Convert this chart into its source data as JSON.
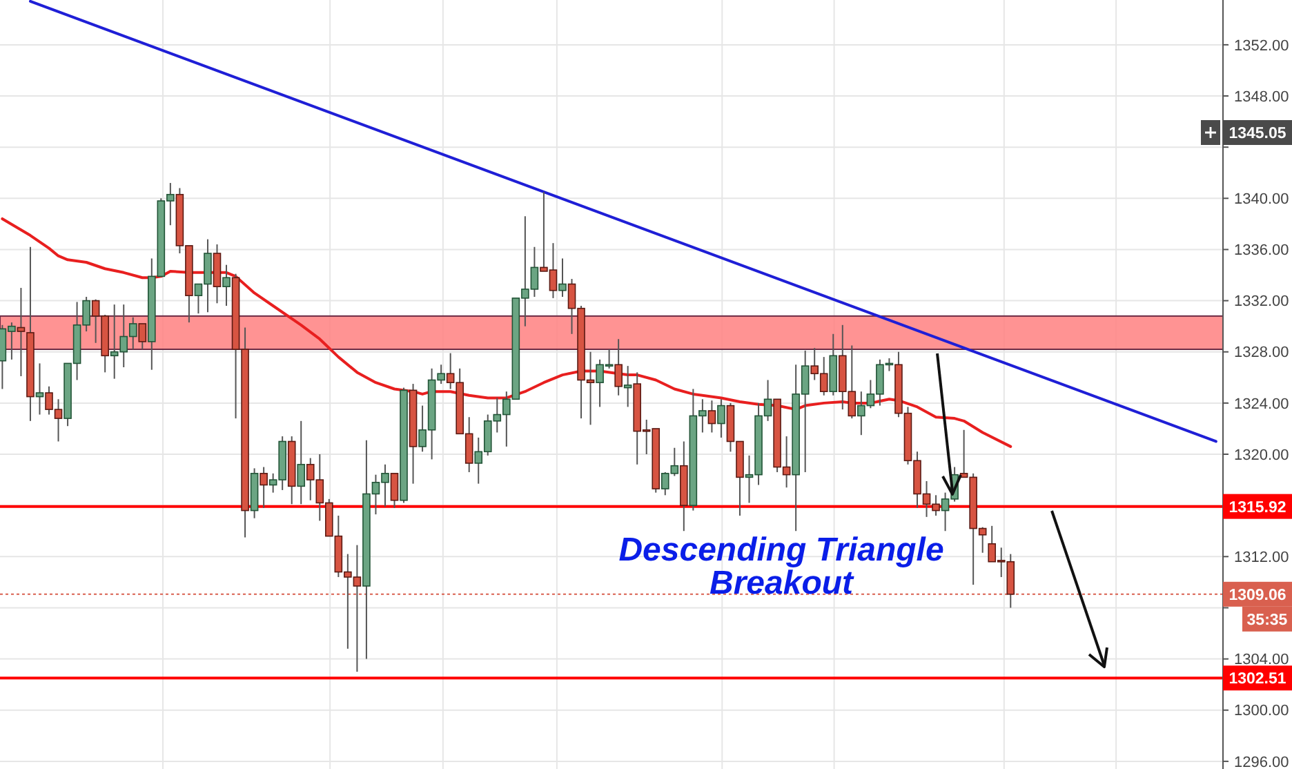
{
  "chart_data": {
    "type": "candlestick",
    "categories": [
      null,
      null,
      null,
      null,
      null,
      null,
      null,
      null,
      null,
      null,
      null,
      null,
      null,
      null,
      null,
      null,
      null,
      null,
      null,
      null,
      null,
      null,
      null,
      null,
      null,
      null,
      null,
      null,
      null,
      null,
      null,
      null,
      null,
      null,
      null,
      null,
      null,
      null,
      null,
      null,
      null,
      null,
      null,
      null,
      null,
      null,
      null,
      null,
      null,
      null,
      null,
      null,
      null,
      null,
      null,
      null,
      null,
      null,
      null,
      null,
      null,
      null,
      null,
      null,
      null,
      null,
      null,
      null,
      null,
      null,
      null,
      null,
      null,
      null,
      null,
      null,
      null,
      null,
      null,
      null,
      null,
      null,
      null,
      null,
      null,
      null,
      null,
      null,
      null,
      null,
      null,
      null,
      null,
      null,
      null,
      null,
      null,
      null,
      null,
      null,
      null,
      null,
      null,
      null,
      null,
      null,
      null,
      null,
      null,
      null,
      null,
      null,
      null,
      null,
      null,
      null,
      null,
      null,
      null,
      null,
      null,
      null,
      null,
      null,
      null,
      null,
      null,
      null,
      null,
      null,
      null
    ],
    "ohlc": [
      [
        1327.3,
        1330.1,
        1325.1,
        1329.8
      ],
      [
        1329.6,
        1330.3,
        1327.4,
        1330.0
      ],
      [
        1329.9,
        1333.0,
        1326.1,
        1329.6
      ],
      [
        1329.5,
        1336.2,
        1322.6,
        1324.5
      ],
      [
        1324.5,
        1327.1,
        1323.1,
        1324.8
      ],
      [
        1324.8,
        1325.3,
        1323.1,
        1323.5
      ],
      [
        1323.5,
        1324.3,
        1321.0,
        1322.8
      ],
      [
        1322.8,
        1327.1,
        1322.2,
        1327.1
      ],
      [
        1327.1,
        1331.9,
        1325.8,
        1330.1
      ],
      [
        1330.1,
        1332.3,
        1329.6,
        1332.0
      ],
      [
        1332.0,
        1332.1,
        1328.7,
        1330.8
      ],
      [
        1330.8,
        1330.9,
        1326.4,
        1327.7
      ],
      [
        1327.7,
        1331.7,
        1325.9,
        1328.0
      ],
      [
        1328.0,
        1331.7,
        1326.8,
        1329.2
      ],
      [
        1329.2,
        1330.7,
        1328.2,
        1330.2
      ],
      [
        1330.2,
        1330.2,
        1328.2,
        1328.8
      ],
      [
        1328.8,
        1335.3,
        1326.6,
        1333.9
      ],
      [
        1333.9,
        1340.0,
        1333.9,
        1339.8
      ],
      [
        1339.8,
        1341.2,
        1337.9,
        1340.3
      ],
      [
        1340.3,
        1340.8,
        1335.7,
        1336.3
      ],
      [
        1336.3,
        1336.3,
        1330.3,
        1332.4
      ],
      [
        1332.4,
        1333.3,
        1331.0,
        1333.3
      ],
      [
        1333.3,
        1336.8,
        1331.1,
        1335.7
      ],
      [
        1335.7,
        1336.4,
        1331.8,
        1333.1
      ],
      [
        1333.1,
        1334.8,
        1331.6,
        1333.8
      ],
      [
        1333.8,
        1334.1,
        1322.8,
        1328.2
      ],
      [
        1328.2,
        1329.9,
        1313.5,
        1315.6
      ],
      [
        1315.6,
        1318.9,
        1315.0,
        1318.5
      ],
      [
        1318.5,
        1319.0,
        1315.8,
        1317.6
      ],
      [
        1317.6,
        1318.5,
        1317.0,
        1318.0
      ],
      [
        1318.0,
        1321.4,
        1317.2,
        1321.0
      ],
      [
        1321.0,
        1321.4,
        1316.1,
        1317.5
      ],
      [
        1317.5,
        1322.6,
        1316.1,
        1319.2
      ],
      [
        1319.2,
        1319.7,
        1316.4,
        1318.0
      ],
      [
        1318.0,
        1320.0,
        1314.8,
        1316.2
      ],
      [
        1316.2,
        1316.5,
        1313.6,
        1313.6
      ],
      [
        1313.6,
        1315.2,
        1310.4,
        1310.8
      ],
      [
        1310.8,
        1312.2,
        1304.8,
        1310.4
      ],
      [
        1310.4,
        1312.9,
        1303.0,
        1309.7
      ],
      [
        1309.7,
        1321.1,
        1304.0,
        1316.9
      ],
      [
        1316.9,
        1318.4,
        1315.3,
        1317.8
      ],
      [
        1317.8,
        1319.2,
        1315.9,
        1318.5
      ],
      [
        1318.5,
        1318.5,
        1315.8,
        1316.4
      ],
      [
        1316.4,
        1325.2,
        1316.2,
        1325.0
      ],
      [
        1325.0,
        1325.5,
        1317.7,
        1320.6
      ],
      [
        1320.6,
        1323.8,
        1320.2,
        1321.9
      ],
      [
        1321.9,
        1326.7,
        1319.6,
        1325.8
      ],
      [
        1325.8,
        1327.0,
        1325.5,
        1326.3
      ],
      [
        1326.3,
        1327.9,
        1325.1,
        1325.6
      ],
      [
        1325.6,
        1326.7,
        1321.6,
        1321.6
      ],
      [
        1321.6,
        1322.9,
        1318.6,
        1319.3
      ],
      [
        1319.3,
        1321.3,
        1317.7,
        1320.2
      ],
      [
        1320.2,
        1323.1,
        1319.9,
        1322.6
      ],
      [
        1322.6,
        1324.4,
        1321.7,
        1323.1
      ],
      [
        1323.1,
        1324.9,
        1320.6,
        1324.3
      ],
      [
        1324.3,
        1332.2,
        1324.3,
        1332.2
      ],
      [
        1332.2,
        1338.6,
        1330.0,
        1332.9
      ],
      [
        1332.9,
        1336.2,
        1332.3,
        1334.6
      ],
      [
        1334.6,
        1340.5,
        1334.3,
        1334.3
      ],
      [
        1334.4,
        1336.5,
        1332.2,
        1332.8
      ],
      [
        1332.8,
        1335.3,
        1332.3,
        1333.3
      ],
      [
        1333.3,
        1333.7,
        1329.4,
        1331.4
      ],
      [
        1331.4,
        1331.6,
        1322.8,
        1325.8
      ],
      [
        1325.8,
        1328.0,
        1322.3,
        1325.6
      ],
      [
        1325.6,
        1327.4,
        1323.7,
        1327.0
      ],
      [
        1326.9,
        1328.2,
        1326.7,
        1327.0
      ],
      [
        1327.0,
        1329.0,
        1324.6,
        1325.3
      ],
      [
        1325.2,
        1326.9,
        1323.7,
        1325.4
      ],
      [
        1325.5,
        1326.4,
        1319.2,
        1321.8
      ],
      [
        1321.9,
        1322.7,
        1320.0,
        1321.8
      ],
      [
        1322.0,
        1322.0,
        1317.0,
        1317.3
      ],
      [
        1317.3,
        1318.6,
        1316.8,
        1318.5
      ],
      [
        1318.5,
        1320.5,
        1318.3,
        1319.1
      ],
      [
        1319.1,
        1321.0,
        1314.0,
        1316.0
      ],
      [
        1316.0,
        1325.1,
        1315.6,
        1323.0
      ],
      [
        1323.0,
        1324.3,
        1321.7,
        1323.4
      ],
      [
        1323.4,
        1324.2,
        1321.7,
        1322.4
      ],
      [
        1322.4,
        1324.3,
        1321.3,
        1323.8
      ],
      [
        1323.8,
        1324.0,
        1320.2,
        1321.0
      ],
      [
        1321.0,
        1321.0,
        1315.2,
        1318.2
      ],
      [
        1318.2,
        1319.9,
        1316.2,
        1318.4
      ],
      [
        1318.4,
        1324.0,
        1317.6,
        1323.0
      ],
      [
        1323.0,
        1325.8,
        1322.6,
        1324.3
      ],
      [
        1324.3,
        1324.3,
        1318.6,
        1319.0
      ],
      [
        1319.0,
        1321.4,
        1317.4,
        1318.4
      ],
      [
        1318.4,
        1327.0,
        1314.0,
        1324.7
      ],
      [
        1324.7,
        1328.1,
        1318.6,
        1326.9
      ],
      [
        1326.9,
        1328.3,
        1325.8,
        1326.3
      ],
      [
        1326.3,
        1327.6,
        1324.6,
        1324.9
      ],
      [
        1324.9,
        1329.4,
        1324.6,
        1327.7
      ],
      [
        1327.7,
        1330.1,
        1323.5,
        1324.9
      ],
      [
        1324.9,
        1328.5,
        1322.8,
        1323.0
      ],
      [
        1323.0,
        1324.9,
        1321.5,
        1323.8
      ],
      [
        1323.8,
        1325.8,
        1323.6,
        1324.7
      ],
      [
        1324.7,
        1327.4,
        1323.8,
        1327.0
      ],
      [
        1327.0,
        1327.5,
        1326.5,
        1327.1
      ],
      [
        1327.0,
        1328.0,
        1322.9,
        1323.2
      ],
      [
        1323.2,
        1323.7,
        1319.2,
        1319.5
      ],
      [
        1319.5,
        1320.2,
        1315.8,
        1316.9
      ],
      [
        1316.9,
        1317.9,
        1315.1,
        1316.1
      ],
      [
        1316.1,
        1316.8,
        1315.2,
        1315.6
      ],
      [
        1315.6,
        1317.0,
        1314.0,
        1316.5
      ],
      [
        1316.5,
        1319.0,
        1316.3,
        1318.4
      ],
      [
        1318.5,
        1321.9,
        1318.2,
        1318.2
      ],
      [
        1318.2,
        1318.5,
        1309.8,
        1314.2
      ],
      [
        1314.2,
        1314.3,
        1312.3,
        1313.7
      ],
      [
        1313.0,
        1314.4,
        1311.6,
        1311.6
      ],
      [
        1311.7,
        1312.7,
        1310.4,
        1311.6
      ],
      [
        1311.6,
        1312.2,
        1308.0,
        1309.06
      ],
      null,
      null,
      null,
      null,
      null,
      null,
      null,
      null,
      null,
      null,
      null,
      null,
      null,
      null,
      null,
      null,
      null,
      null,
      null,
      null,
      null,
      null
    ],
    "series": [
      {
        "type": "line",
        "color": "#e81f1f",
        "values": [
          1338.4,
          null,
          null,
          1337.1,
          null,
          1336.1,
          1335.5,
          1335.2,
          null,
          1335.0,
          null,
          1334.5,
          null,
          1334.2,
          null,
          1333.8,
          1333.8,
          1333.9,
          1334.3,
          null,
          1334.2,
          null,
          null,
          1334.2,
          1334.2,
          1333.9,
          null,
          1332.6,
          null,
          1331.6,
          null,
          null,
          1330.1,
          null,
          1329.0,
          null,
          1327.6,
          null,
          1326.4,
          null,
          1325.6,
          null,
          1325.1,
          null,
          1324.9,
          1324.7,
          1324.9,
          null,
          1324.9,
          null,
          1324.6,
          null,
          1324.4,
          null,
          1324.4,
          null,
          1324.9,
          null,
          1325.6,
          null,
          1326.2,
          null,
          1326.5,
          null,
          1326.5,
          null,
          1326.3,
          1326.2,
          1326.2,
          null,
          1325.8,
          null,
          1325.1,
          null,
          1324.7,
          null,
          null,
          1324.4,
          null,
          1324.1,
          null,
          1323.9,
          null,
          1323.8,
          null,
          1323.5,
          1323.8,
          null,
          1324.0,
          null,
          1324.1,
          1324.0,
          null,
          1324.0,
          null,
          1324.3,
          1324.2,
          null,
          1323.7,
          null,
          1322.9,
          null,
          1322.8,
          1322.6,
          null,
          1321.7,
          null,
          null,
          1320.6,
          null,
          null,
          null,
          null,
          null,
          null,
          null,
          null,
          null,
          null,
          null,
          null,
          null,
          null,
          null,
          null,
          null,
          null,
          null,
          null,
          null,
          null
        ]
      },
      {
        "type": "line",
        "color": "#1f1fd6",
        "values": [
          null,
          null,
          null,
          1355.4,
          null,
          null,
          null,
          null,
          null,
          null,
          null,
          null,
          null,
          null,
          null,
          null,
          null,
          null,
          null,
          null,
          null,
          null,
          null,
          null,
          null,
          null,
          null,
          null,
          null,
          null,
          null,
          null,
          null,
          null,
          null,
          null,
          null,
          null,
          null,
          null,
          null,
          null,
          null,
          null,
          null,
          null,
          null,
          null,
          null,
          null,
          null,
          null,
          null,
          null,
          null,
          null,
          null,
          null,
          null,
          null,
          null,
          null,
          null,
          null,
          null,
          null,
          null,
          null,
          null,
          null,
          null,
          null,
          null,
          null,
          null,
          null,
          null,
          null,
          null,
          null,
          null,
          null,
          null,
          null,
          null,
          null,
          null,
          null,
          null,
          null,
          null,
          null,
          null,
          null,
          null,
          null,
          null,
          null,
          null,
          null,
          null,
          null,
          null,
          null,
          null,
          null,
          null,
          null,
          null,
          null,
          null,
          null,
          null,
          null,
          null,
          null,
          null,
          null,
          null,
          null,
          null,
          null,
          null,
          null,
          null,
          null,
          null,
          null,
          null,
          null,
          1321.0
        ]
      }
    ],
    "ylim": [
      1295.4,
      1355.5
    ],
    "yticks": [
      {
        "value": 1296,
        "label": "1296.00"
      },
      {
        "value": 1300,
        "label": "1300.00"
      },
      {
        "value": 1304,
        "label": "1304.00"
      },
      {
        "value": 1308,
        "label": null
      },
      {
        "value": 1312,
        "label": "1312.00"
      },
      {
        "value": 1316,
        "label": null
      },
      {
        "value": 1320,
        "label": "1320.00"
      },
      {
        "value": 1324,
        "label": "1324.00"
      },
      {
        "value": 1328,
        "label": "1328.00"
      },
      {
        "value": 1332,
        "label": "1332.00"
      },
      {
        "value": 1336,
        "label": "1336.00"
      },
      {
        "value": 1340,
        "label": "1340.00"
      },
      {
        "value": 1344,
        "label": null
      },
      {
        "value": 1348,
        "label": "1348.00"
      },
      {
        "value": 1352,
        "label": "1352.00"
      }
    ],
    "grid": true,
    "tick_labels": "y",
    "ref_lines": [
      {
        "axis": "y",
        "value": 1315.92,
        "label": "1315.92",
        "color": "#ff0000"
      },
      {
        "axis": "y",
        "value": 1302.51,
        "label": "1302.51",
        "color": "#ff0000"
      },
      {
        "axis": "y",
        "value": 1309.06,
        "label": "1309.06",
        "color": "#d9604f",
        "line_style": "dotted"
      }
    ],
    "bands": [
      {
        "axis": "y",
        "from": 1328.2,
        "to": 1330.8,
        "color": "#ff8080"
      }
    ],
    "annotations": [
      "Descending Triangle Breakout",
      "35:35",
      "1345.05"
    ]
  }
}
